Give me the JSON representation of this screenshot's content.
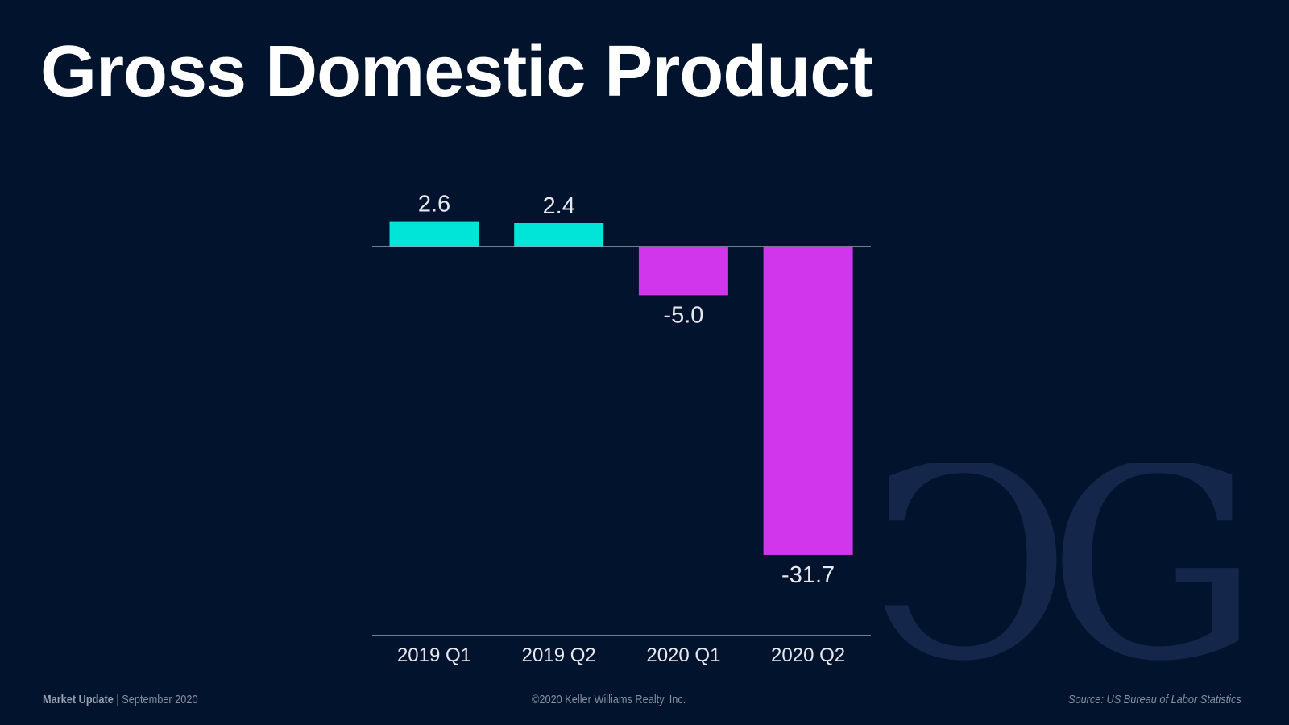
{
  "slide": {
    "title": "Gross Domestic Product",
    "logo_text": "DG"
  },
  "footer": {
    "label": "Market Update",
    "separator": "|",
    "date": "September 2020",
    "copyright": "©2020 Keller Williams Realty, Inc.",
    "source": "Source: US Bureau of Labor Statistics"
  },
  "colors": {
    "background": "#01132d",
    "positive": "#00e5d8",
    "negative": "#d136ec",
    "logo": "#14264a"
  },
  "chart_data": {
    "type": "bar",
    "title": "Gross Domestic Product",
    "categories": [
      "2019 Q1",
      "2019 Q2",
      "2020 Q1",
      "2020 Q2"
    ],
    "values": [
      2.6,
      2.4,
      -5.0,
      -31.7
    ],
    "data_labels": [
      "2.6",
      "2.4",
      "-5.0",
      "-31.7"
    ],
    "xlabel": "",
    "ylabel": "",
    "ylim": [
      -39.2,
      2.6
    ],
    "grid": false,
    "legend": "none"
  }
}
